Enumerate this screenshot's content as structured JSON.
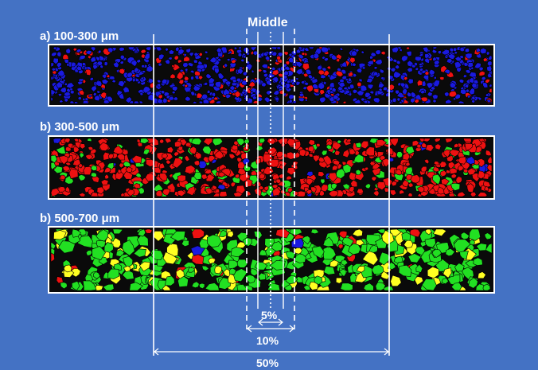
{
  "colors": {
    "background": "#4472c4",
    "strip_border": "#ffffff",
    "strip_fill": "#0a0a0a",
    "blue_particle": "#1a1ae0",
    "red_particle": "#ee1111",
    "green_particle": "#22e022",
    "yellow_particle": "#ffff22",
    "guide_line": "#ffffff",
    "text": "#ffffff"
  },
  "top_label": "Middle",
  "strips": [
    {
      "label": "a) 100-300 μm",
      "mix": {
        "blue": 0.85,
        "red": 0.15,
        "green": 0.0,
        "yellow": 0.0
      }
    },
    {
      "label": "b) 300-500 μm",
      "mix": {
        "blue": 0.03,
        "red": 0.8,
        "green": 0.17,
        "yellow": 0.0
      }
    },
    {
      "label": "b) 500-700 μm",
      "mix": {
        "blue": 0.01,
        "red": 0.05,
        "green": 0.7,
        "yellow": 0.24
      }
    }
  ],
  "zones": [
    {
      "label": "5%",
      "line_style": "dotted"
    },
    {
      "label": "10%",
      "line_style": "dashed"
    },
    {
      "label": "50%",
      "line_style": "solid"
    }
  ],
  "icons": {
    "arrow": "double-headed-arrow-icon"
  }
}
